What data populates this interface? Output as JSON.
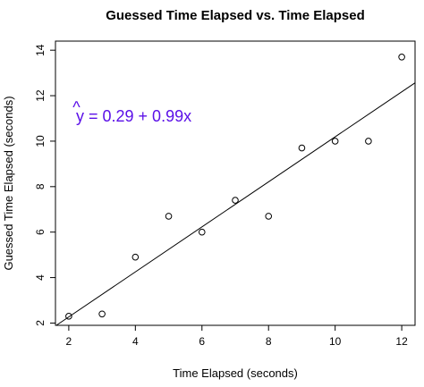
{
  "chart_data": {
    "type": "scatter",
    "title": "Guessed Time Elapsed vs. Time Elapsed",
    "xlabel": "Time Elapsed (seconds)",
    "ylabel": "Guessed Time Elapsed (seconds)",
    "xlim": [
      1.6,
      12.4
    ],
    "ylim": [
      1.9,
      14.4
    ],
    "xticks": [
      2,
      4,
      6,
      8,
      10,
      12
    ],
    "yticks": [
      2,
      4,
      6,
      8,
      10,
      12,
      14
    ],
    "points": [
      {
        "x": 2,
        "y": 2.3
      },
      {
        "x": 3,
        "y": 2.4
      },
      {
        "x": 4,
        "y": 4.9
      },
      {
        "x": 5,
        "y": 6.7
      },
      {
        "x": 6,
        "y": 6.0
      },
      {
        "x": 7,
        "y": 7.4
      },
      {
        "x": 8,
        "y": 6.7
      },
      {
        "x": 9,
        "y": 9.7
      },
      {
        "x": 10,
        "y": 10.0
      },
      {
        "x": 11,
        "y": 10.0
      },
      {
        "x": 12,
        "y": 13.7
      }
    ],
    "regression": {
      "intercept": 0.29,
      "slope": 0.99
    },
    "equation": {
      "hat_var": "y",
      "rest": " = 0.29 + 0.99x",
      "color": "#5b10e8"
    },
    "point_color": "#000000",
    "line_color": "#000000",
    "grid": false
  }
}
